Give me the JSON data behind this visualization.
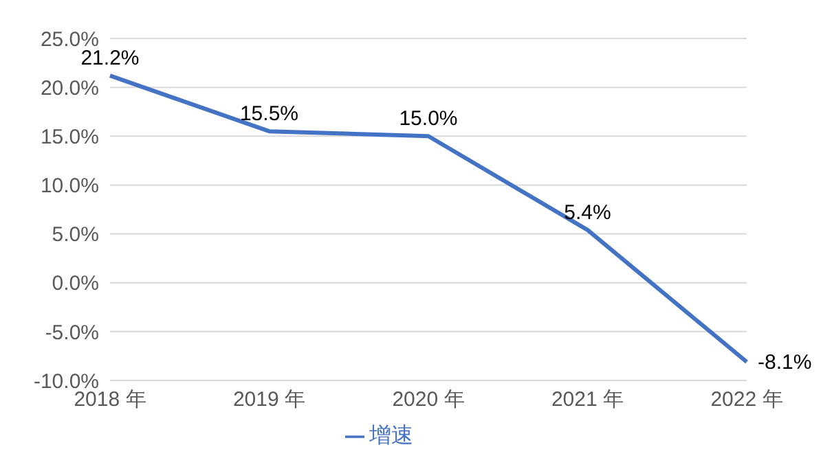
{
  "chart_data": {
    "type": "line",
    "categories": [
      "2018 年",
      "2019 年",
      "2020 年",
      "2021 年",
      "2022 年"
    ],
    "series": [
      {
        "name": "增速",
        "color": "#4472c4",
        "values": [
          21.2,
          15.5,
          15.0,
          5.4,
          -8.1
        ],
        "value_labels": [
          "21.2%",
          "15.5%",
          "15.0%",
          "5.4%",
          "-8.1%"
        ]
      }
    ],
    "ylim": [
      -10,
      25
    ],
    "yticks": [
      {
        "value": -10,
        "label": "-10.0%"
      },
      {
        "value": -5,
        "label": "-5.0%"
      },
      {
        "value": 0,
        "label": "0.0%"
      },
      {
        "value": 5,
        "label": "5.0%"
      },
      {
        "value": 10,
        "label": "10.0%"
      },
      {
        "value": 15,
        "label": "15.0%"
      },
      {
        "value": 20,
        "label": "20.0%"
      },
      {
        "value": 25,
        "label": "25.0%"
      }
    ],
    "grid": "y",
    "legend": "bottom",
    "marker": "none",
    "line_style": "solid"
  }
}
